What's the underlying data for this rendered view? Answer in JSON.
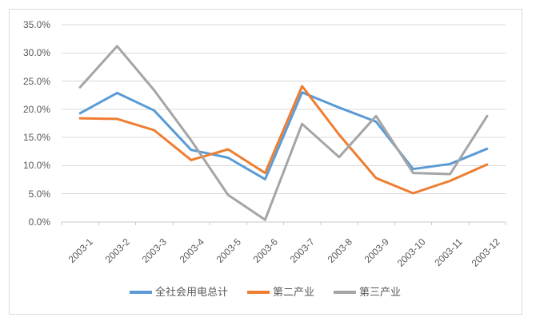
{
  "chart_data": {
    "type": "line",
    "title": "",
    "xlabel": "",
    "ylabel": "",
    "categories": [
      "2003-1",
      "2003-2",
      "2003-3",
      "2003-4",
      "2003-5",
      "2003-6",
      "2003-7",
      "2003-8",
      "2003-9",
      "2003-10",
      "2003-11",
      "2003-12"
    ],
    "series": [
      {
        "name": "全社会用电总计",
        "color": "#5B9BD5",
        "values": [
          19.3,
          22.9,
          19.8,
          12.8,
          11.4,
          7.6,
          23.0,
          20.3,
          17.8,
          9.4,
          10.3,
          13.0
        ]
      },
      {
        "name": "第二产业",
        "color": "#ED7D31",
        "values": [
          18.4,
          18.3,
          16.3,
          11.0,
          12.9,
          8.7,
          24.1,
          15.5,
          7.8,
          5.1,
          7.3,
          10.2
        ]
      },
      {
        "name": "第三产业",
        "color": "#A5A5A5",
        "values": [
          23.9,
          31.2,
          23.4,
          14.5,
          4.8,
          0.4,
          17.4,
          11.5,
          18.8,
          8.7,
          8.5,
          18.8
        ]
      }
    ],
    "ylim": [
      0,
      35
    ],
    "y_tick_step": 5,
    "y_tick_labels": [
      "0.0%",
      "5.0%",
      "10.0%",
      "15.0%",
      "20.0%",
      "25.0%",
      "30.0%",
      "35.0%"
    ],
    "y_unit": "percent",
    "grid": true,
    "x_tick_label_rotation_deg": 45,
    "legend_position": "bottom"
  },
  "legend": {
    "items": [
      "全社会用电总计",
      "第二产业",
      "第三产业"
    ]
  },
  "colors": {
    "background": "#FFFFFF",
    "chart_border": "#D9D9D9",
    "gridline": "#D9D9D9",
    "axis_line": "#C9C9C9",
    "axis_text": "#595959",
    "series_total": "#5B9BD5",
    "series_secondary_industry": "#ED7D31",
    "series_tertiary_industry": "#A5A5A5"
  }
}
